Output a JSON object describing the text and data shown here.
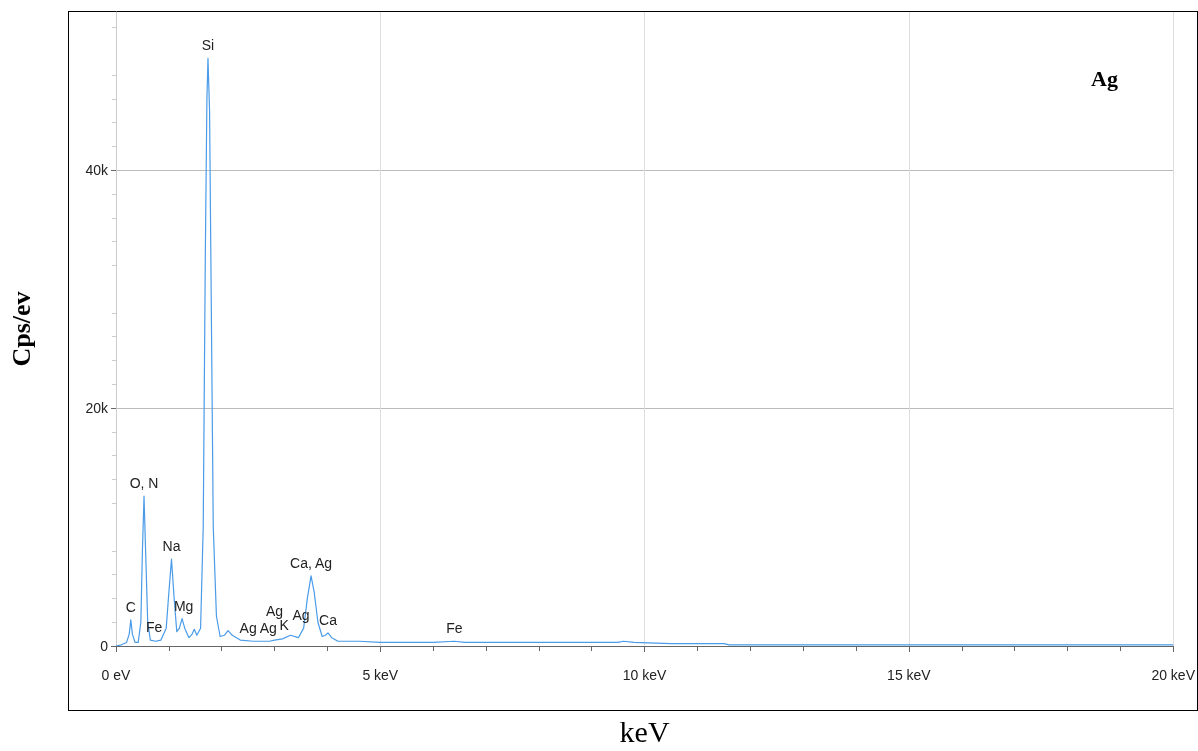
{
  "chart_data": {
    "type": "line",
    "title": "Ag",
    "xlabel": "keV",
    "ylabel": "Cps/ev",
    "x": [
      0,
      0.1,
      0.2,
      0.25,
      0.28,
      0.31,
      0.36,
      0.42,
      0.47,
      0.5,
      0.53,
      0.56,
      0.6,
      0.65,
      0.75,
      0.85,
      0.95,
      1.0,
      1.05,
      1.1,
      1.15,
      1.2,
      1.25,
      1.3,
      1.38,
      1.44,
      1.48,
      1.53,
      1.6,
      1.65,
      1.69,
      1.72,
      1.74,
      1.77,
      1.8,
      1.84,
      1.9,
      1.97,
      2.05,
      2.12,
      2.2,
      2.35,
      2.6,
      2.9,
      3.0,
      3.15,
      3.3,
      3.45,
      3.55,
      3.62,
      3.69,
      3.75,
      3.82,
      3.9,
      3.96,
      4.01,
      4.08,
      4.2,
      4.6,
      5.0,
      6.0,
      6.4,
      6.6,
      7.0,
      7.5,
      9.5,
      9.6,
      9.8,
      10.5,
      11.5,
      11.6,
      14,
      20
    ],
    "series": [
      {
        "color": "#4a9be8",
        "values": [
          0,
          100,
          300,
          1000,
          2200,
          1000,
          300,
          300,
          2000,
          8000,
          12600,
          8000,
          2000,
          500,
          400,
          500,
          1500,
          4500,
          7300,
          4000,
          1200,
          1500,
          2300,
          1500,
          700,
          1000,
          1400,
          900,
          1500,
          10000,
          33000,
          46000,
          49400,
          45000,
          30000,
          10000,
          2500,
          800,
          900,
          1300,
          900,
          500,
          400,
          400,
          500,
          600,
          900,
          700,
          1500,
          4000,
          5900,
          4500,
          2000,
          800,
          900,
          1100,
          700,
          400,
          400,
          300,
          300,
          400,
          300,
          300,
          300,
          300,
          400,
          300,
          200,
          200,
          100,
          100,
          100
        ]
      }
    ],
    "xlim": [
      0,
      20
    ],
    "xticks": [
      {
        "value": 0,
        "label": "0 eV"
      },
      {
        "value": 5,
        "label": "5 keV"
      },
      {
        "value": 10,
        "label": "10 keV"
      },
      {
        "value": 15,
        "label": "15 keV"
      },
      {
        "value": 20,
        "label": "20 keV"
      }
    ],
    "ylim": [
      0,
      53300
    ],
    "yticks": [
      0,
      {
        "value": 20000,
        "label": "20k"
      },
      {
        "value": 40000,
        "label": "40k"
      }
    ],
    "grid": true,
    "marker": "none",
    "line_style": "solid",
    "annotations": [
      {
        "text": "Si",
        "x": 1.74,
        "y": 49400
      },
      {
        "text": "O, N",
        "x": 0.53,
        "y": 12600
      },
      {
        "text": "C",
        "x": 0.28,
        "y": 2200
      },
      {
        "text": "Fe",
        "x": 0.72,
        "y": 500
      },
      {
        "text": "Na",
        "x": 1.05,
        "y": 7300
      },
      {
        "text": "Mg",
        "x": 1.28,
        "y": 2300
      },
      {
        "text": "Ag",
        "x": 2.5,
        "y": 400
      },
      {
        "text": "Ag",
        "x": 2.88,
        "y": 400
      },
      {
        "text": "K",
        "x": 3.18,
        "y": 700
      },
      {
        "text": "Ag",
        "x": 3.0,
        "y": 500
      },
      {
        "text": "Ag",
        "x": 3.5,
        "y": 1500
      },
      {
        "text": "Ca, Ag",
        "x": 3.69,
        "y": 5900
      },
      {
        "text": "Ca",
        "x": 4.01,
        "y": 1100
      },
      {
        "text": "Fe",
        "x": 6.4,
        "y": 400
      }
    ]
  }
}
